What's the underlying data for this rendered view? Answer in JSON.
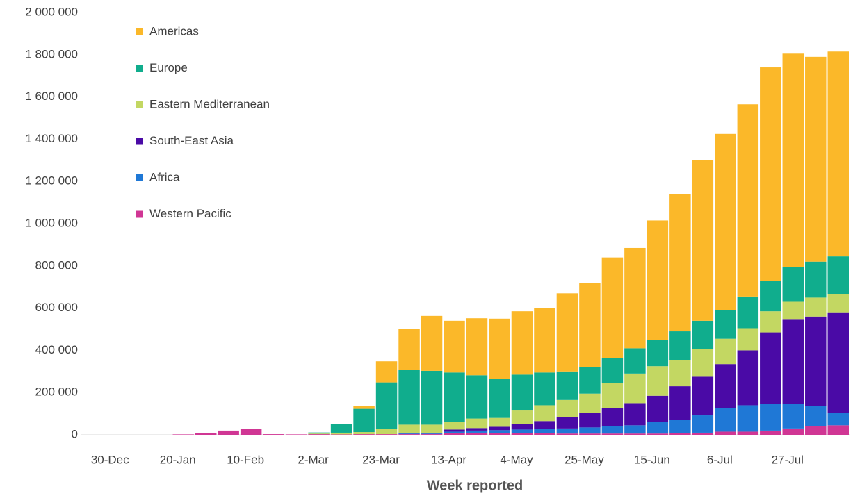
{
  "chart_data": {
    "type": "stacked-bar",
    "x_label": "Week reported",
    "categories": [
      "30-Dec",
      null,
      null,
      "20-Jan",
      null,
      null,
      "10-Feb",
      null,
      null,
      "2-Mar",
      null,
      null,
      "23-Mar",
      null,
      null,
      "13-Apr",
      null,
      null,
      "4-May",
      null,
      null,
      "25-May",
      null,
      null,
      "15-Jun",
      null,
      null,
      "6-Jul",
      null,
      null,
      "27-Jul",
      null,
      null
    ],
    "series": [
      {
        "name": "Americas",
        "color": "#fbb829",
        "values": [
          0,
          0,
          0,
          0,
          0,
          0,
          0,
          0,
          0,
          0,
          0,
          12000,
          100000,
          195000,
          260000,
          245000,
          270000,
          285000,
          300000,
          305000,
          370000,
          400000,
          475000,
          475000,
          565000,
          650000,
          760000,
          835000,
          910000,
          1010000,
          1010000,
          970000,
          970000
        ]
      },
      {
        "name": "Europe",
        "color": "#10ad8d",
        "values": [
          0,
          0,
          0,
          0,
          0,
          0,
          0,
          0,
          0,
          5000,
          40000,
          110000,
          220000,
          260000,
          255000,
          235000,
          205000,
          185000,
          170000,
          155000,
          135000,
          125000,
          120000,
          120000,
          125000,
          135000,
          135000,
          135000,
          150000,
          145000,
          165000,
          170000,
          180000
        ]
      },
      {
        "name": "Eastern Mediterranean",
        "color": "#c3d762",
        "values": [
          0,
          0,
          0,
          0,
          0,
          0,
          0,
          0,
          0,
          3000,
          8000,
          10000,
          25000,
          40000,
          40000,
          35000,
          45000,
          42000,
          65000,
          75000,
          80000,
          90000,
          120000,
          140000,
          140000,
          125000,
          130000,
          120000,
          105000,
          100000,
          85000,
          90000,
          85000
        ]
      },
      {
        "name": "South-East Asia",
        "color": "#4a0aa6",
        "values": [
          0,
          0,
          0,
          0,
          0,
          0,
          0,
          0,
          0,
          0,
          0,
          0,
          0,
          2000,
          2000,
          10000,
          12000,
          16000,
          25000,
          38000,
          55000,
          70000,
          85000,
          105000,
          125000,
          158000,
          183000,
          210000,
          260000,
          340000,
          400000,
          425000,
          475000
        ]
      },
      {
        "name": "Africa",
        "color": "#1f78d6",
        "values": [
          0,
          0,
          0,
          0,
          0,
          0,
          0,
          0,
          0,
          0,
          0,
          0,
          0,
          3000,
          3000,
          7000,
          10000,
          14000,
          17000,
          20000,
          24000,
          29000,
          34000,
          39000,
          54000,
          65000,
          82000,
          110000,
          125000,
          125000,
          115000,
          95000,
          60000
        ]
      },
      {
        "name": "Western Pacific",
        "color": "#d03694",
        "values": [
          0,
          0,
          0,
          2000,
          8000,
          20000,
          28000,
          3000,
          2000,
          3000,
          2000,
          3000,
          3000,
          3000,
          3000,
          8000,
          10000,
          8000,
          8000,
          7000,
          6000,
          6000,
          6000,
          6000,
          6000,
          7000,
          10000,
          15000,
          15000,
          20000,
          30000,
          40000,
          45000
        ]
      }
    ],
    "ylim": [
      0,
      2000000
    ],
    "yticks": [
      0,
      {
        "value": 200000,
        "label": "200 000"
      },
      {
        "value": 400000,
        "label": "400 000"
      },
      {
        "value": 600000,
        "label": "600 000"
      },
      {
        "value": 800000,
        "label": "800 000"
      },
      {
        "value": 1000000,
        "label": "1 000 000"
      },
      {
        "value": 1200000,
        "label": "1 200 000"
      },
      {
        "value": 1400000,
        "label": "1 400 000"
      },
      {
        "value": 1600000,
        "label": "1 600 000"
      },
      {
        "value": 1800000,
        "label": "1 800 000"
      },
      {
        "value": 2000000,
        "label": "2 000 000"
      }
    ],
    "legend": "top-left"
  }
}
